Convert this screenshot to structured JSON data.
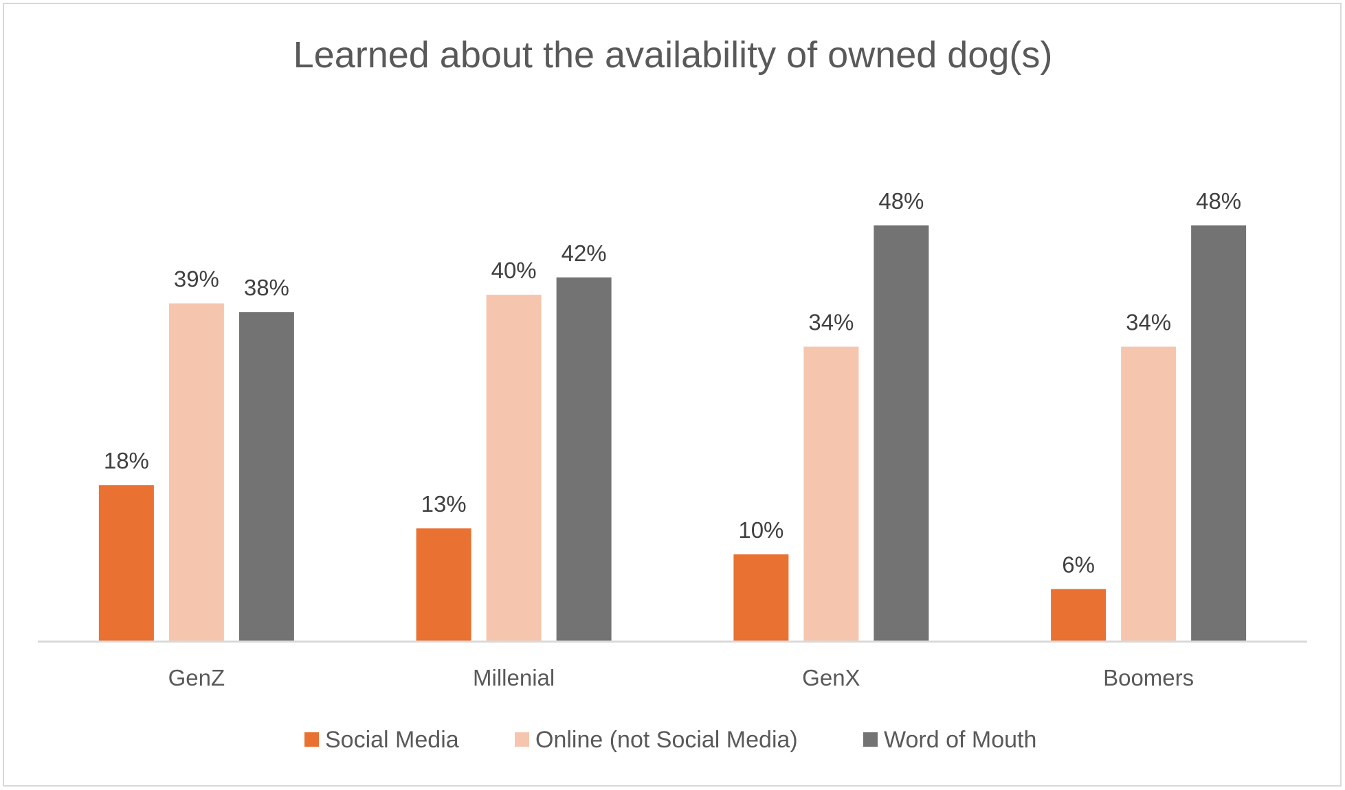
{
  "chart_data": {
    "type": "bar",
    "title": "Learned about the availability of owned dog(s)",
    "xlabel": "",
    "ylabel": "",
    "categories": [
      "GenZ",
      "Millenial",
      "GenX",
      "Boomers"
    ],
    "series": [
      {
        "name": "Social Media",
        "values": [
          18,
          13,
          10,
          6
        ],
        "labels": [
          "18%",
          "13%",
          "10%",
          "6%"
        ],
        "color": "#E97132"
      },
      {
        "name": "Online (not Social Media)",
        "values": [
          39,
          40,
          34,
          34
        ],
        "labels": [
          "39%",
          "40%",
          "34%",
          "34%"
        ],
        "color": "#F5C6AD"
      },
      {
        "name": "Word of Mouth",
        "values": [
          38,
          42,
          48,
          48
        ],
        "labels": [
          "38%",
          "42%",
          "48%",
          "48%"
        ],
        "color": "#737373"
      }
    ],
    "ylim": [
      0,
      55
    ],
    "grid": false,
    "y_axis_visible": false,
    "legend": "bottom"
  }
}
